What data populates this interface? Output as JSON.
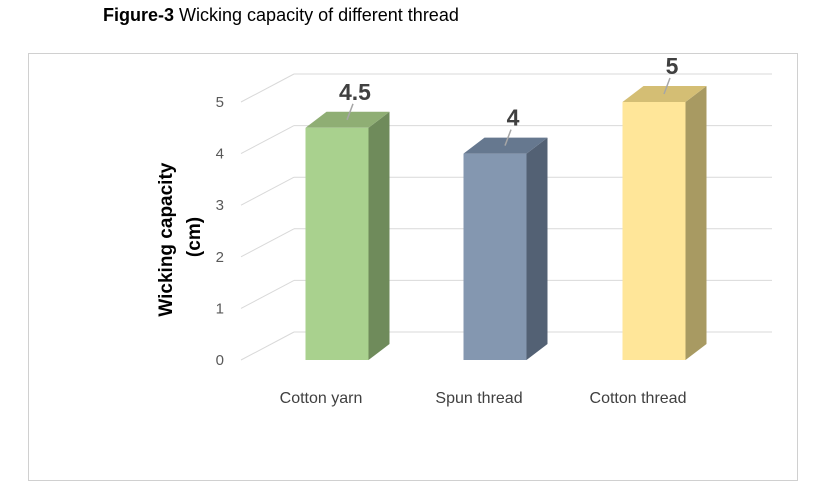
{
  "caption": {
    "number": "Figure-3",
    "text": "Wicking capacity of different thread"
  },
  "chart_data": {
    "type": "bar",
    "style": "3d-column",
    "categories": [
      "Cotton yarn",
      "Spun thread",
      "Cotton thread"
    ],
    "values": [
      4.5,
      4,
      5
    ],
    "data_labels": [
      "4.5",
      "4",
      "5"
    ],
    "ylabel_lines": [
      "Wicking capacity",
      "(cm)"
    ],
    "xlabel": "",
    "ylim": [
      0,
      5
    ],
    "yticks": [
      0,
      1,
      2,
      3,
      4,
      5
    ],
    "grid": true,
    "legend": "none",
    "colors": {
      "bars_front": [
        "#a9d18e",
        "#8497b0",
        "#ffe699"
      ],
      "bars_top": [
        "#8fae74",
        "#66788f",
        "#d4be74"
      ],
      "bars_side": [
        "#6f8b5b",
        "#536174",
        "#a89a62"
      ],
      "grid": "#d9d9d9",
      "frame": "#d0d0d0"
    }
  }
}
